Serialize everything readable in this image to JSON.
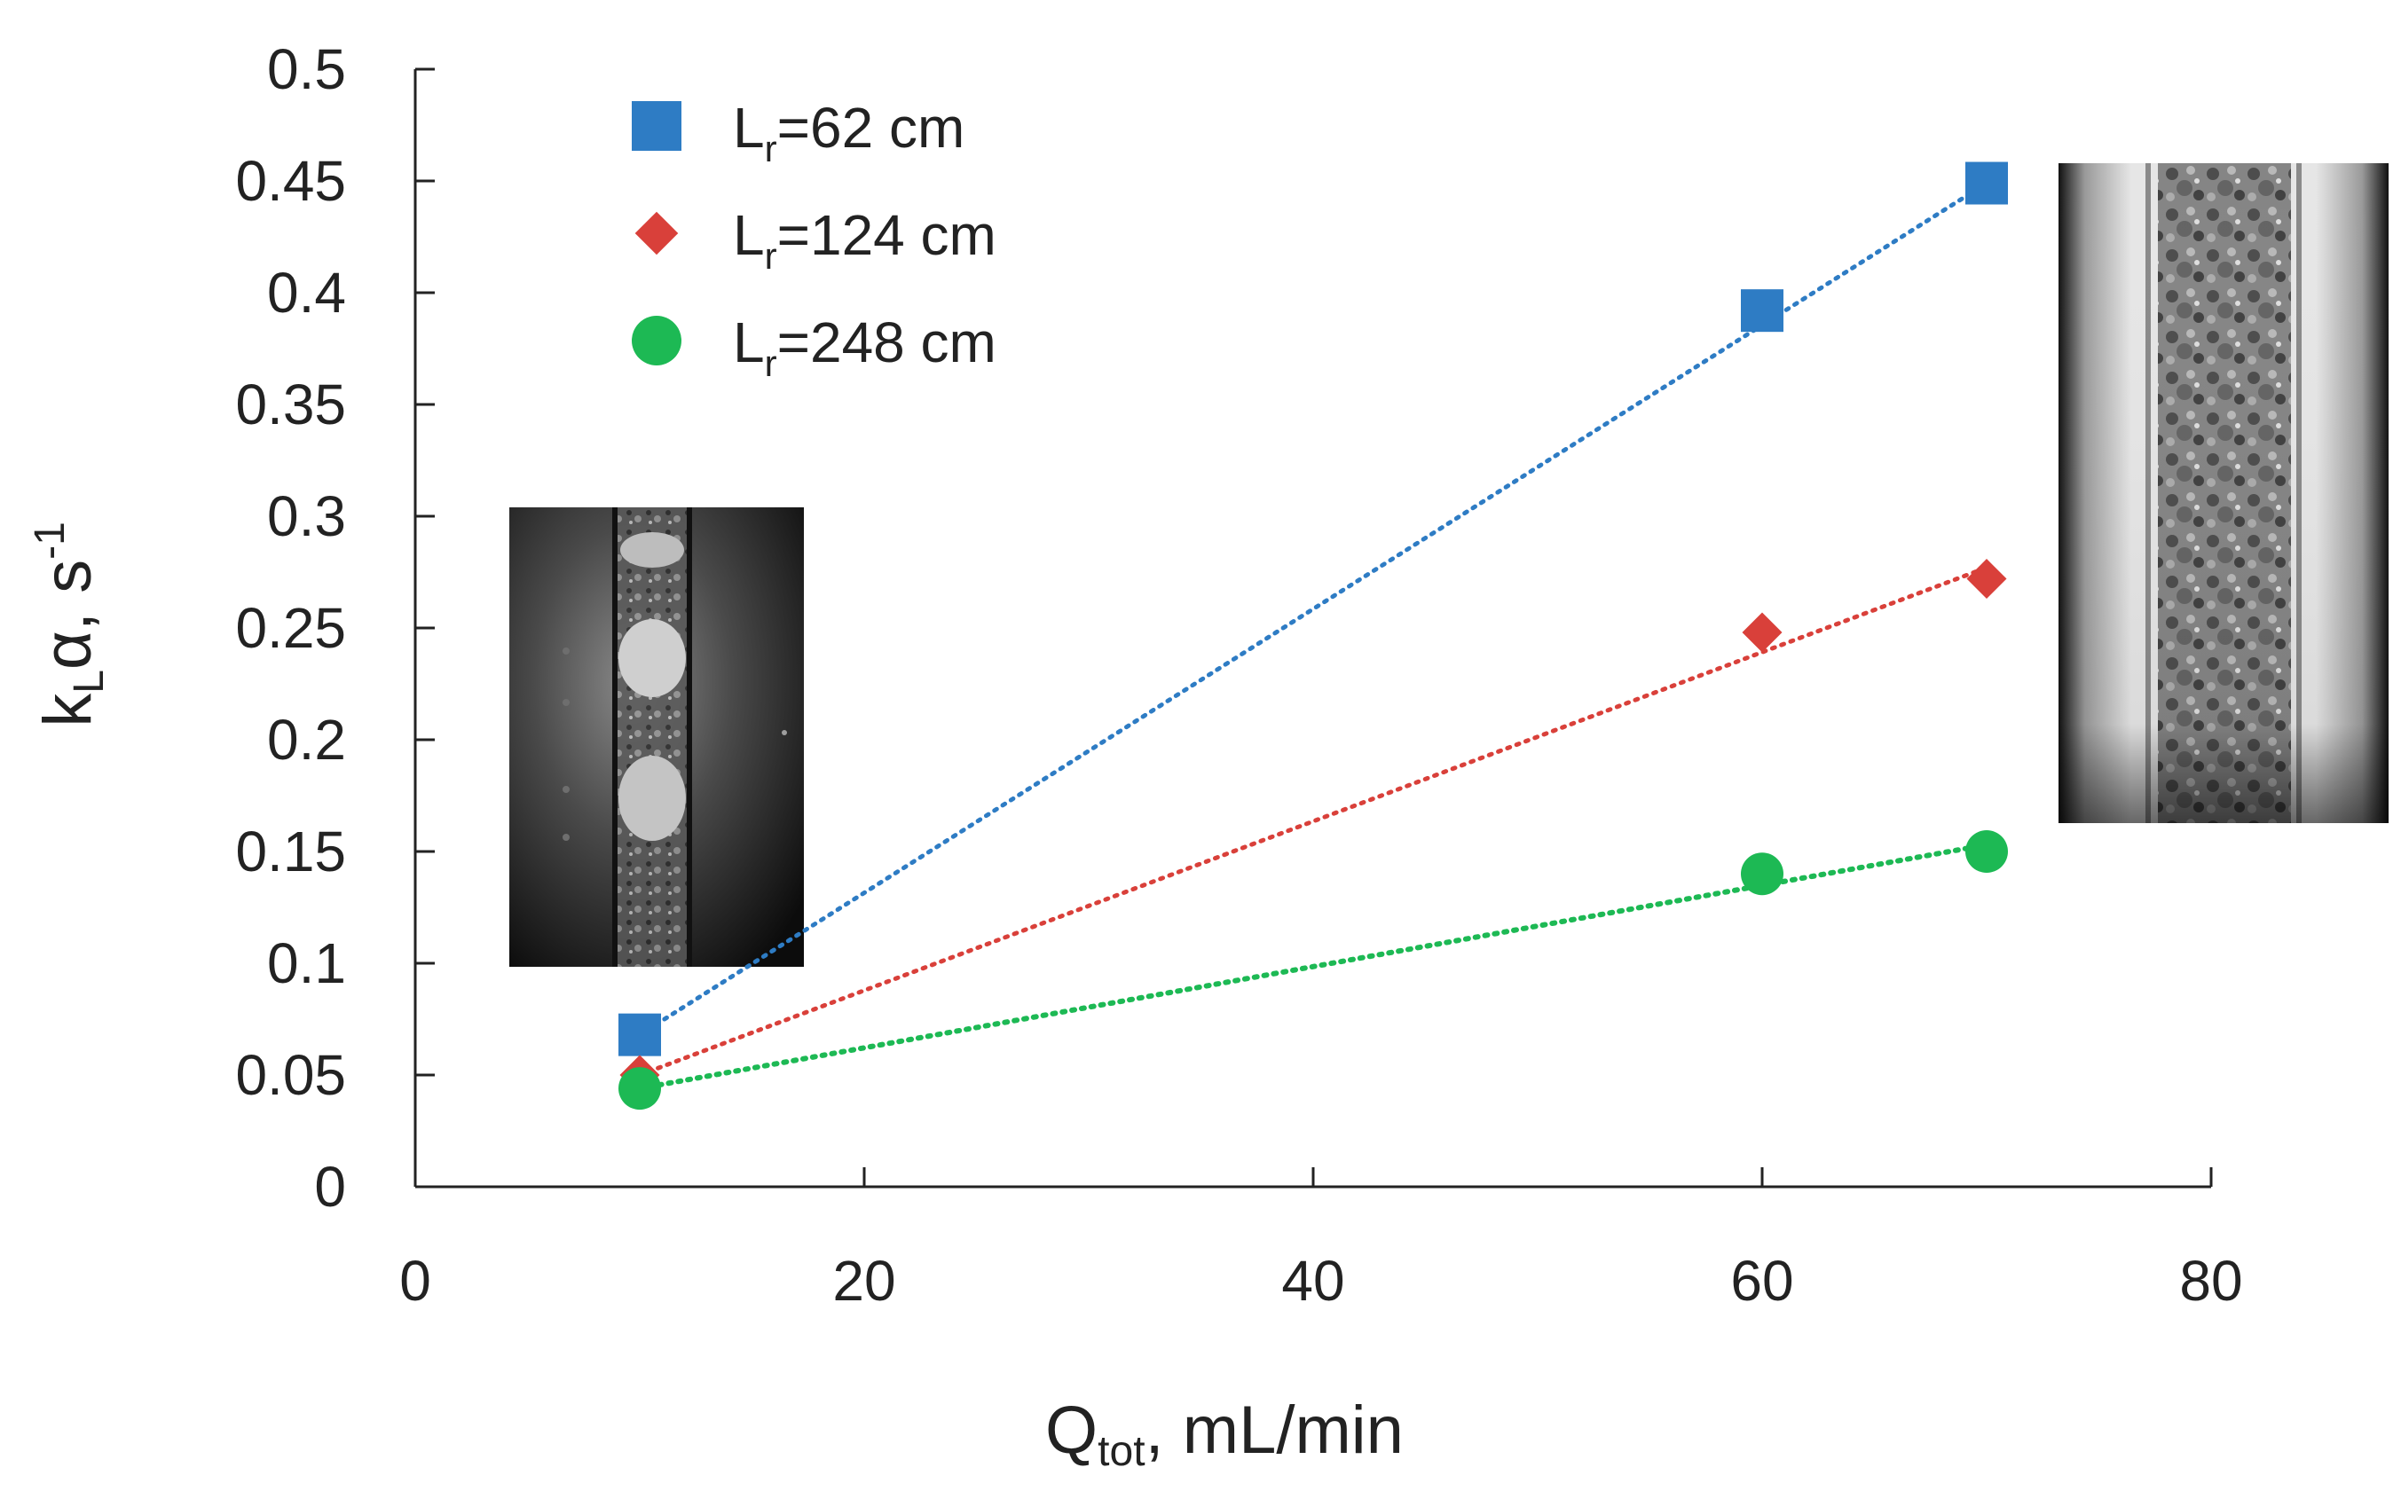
{
  "chart_data": {
    "type": "scatter",
    "title": "",
    "x_axis": {
      "base": "Q",
      "sub": "tot",
      "rest": ", mL/min",
      "min": 0,
      "max": 80,
      "ticks": [
        0,
        20,
        40,
        60,
        80
      ],
      "tick_labels": [
        "0",
        "20",
        "40",
        "60",
        "80"
      ]
    },
    "y_axis": {
      "base": "k",
      "sub": "L",
      "mid": "α, s",
      "sup": "-1",
      "min": 0,
      "max": 0.5,
      "ticks": [
        0,
        0.05,
        0.1,
        0.15,
        0.2,
        0.25,
        0.3,
        0.35,
        0.4,
        0.45,
        0.5
      ],
      "tick_labels": [
        "0",
        "0.05",
        "0.1",
        "0.15",
        "0.2",
        "0.25",
        "0.3",
        "0.35",
        "0.4",
        "0.45",
        "0.5"
      ]
    },
    "series": [
      {
        "name": "Lr=62 cm",
        "label_base": "L",
        "label_sub": "r",
        "label_rest": "=62 cm",
        "marker": "square",
        "color": "#2E7CC4",
        "x": [
          10,
          60,
          70
        ],
        "y": [
          0.068,
          0.392,
          0.449
        ],
        "trendline": [
          [
            10,
            0.068
          ],
          [
            70,
            0.449
          ]
        ]
      },
      {
        "name": "Lr=124 cm",
        "label_base": "L",
        "label_sub": "r",
        "label_rest": "=124 cm",
        "marker": "diamond",
        "color": "#D9403A",
        "x": [
          10,
          60,
          70
        ],
        "y": [
          0.05,
          0.248,
          0.272
        ],
        "trendline": [
          [
            10,
            0.05
          ],
          [
            70,
            0.277
          ]
        ]
      },
      {
        "name": "Lr=248 cm",
        "label_base": "L",
        "label_sub": "r",
        "label_rest": "=248 cm",
        "marker": "circle",
        "color": "#1DB954",
        "x": [
          10,
          60,
          70
        ],
        "y": [
          0.044,
          0.14,
          0.15
        ],
        "trendline": [
          [
            10,
            0.044
          ],
          [
            70,
            0.153
          ]
        ]
      }
    ],
    "legend_position": "top-left",
    "grid": false,
    "insets": [
      {
        "description": "low flow segmented photo",
        "near_x": 10
      },
      {
        "description": "high flow dispersed photo",
        "near_x": 70
      }
    ]
  }
}
